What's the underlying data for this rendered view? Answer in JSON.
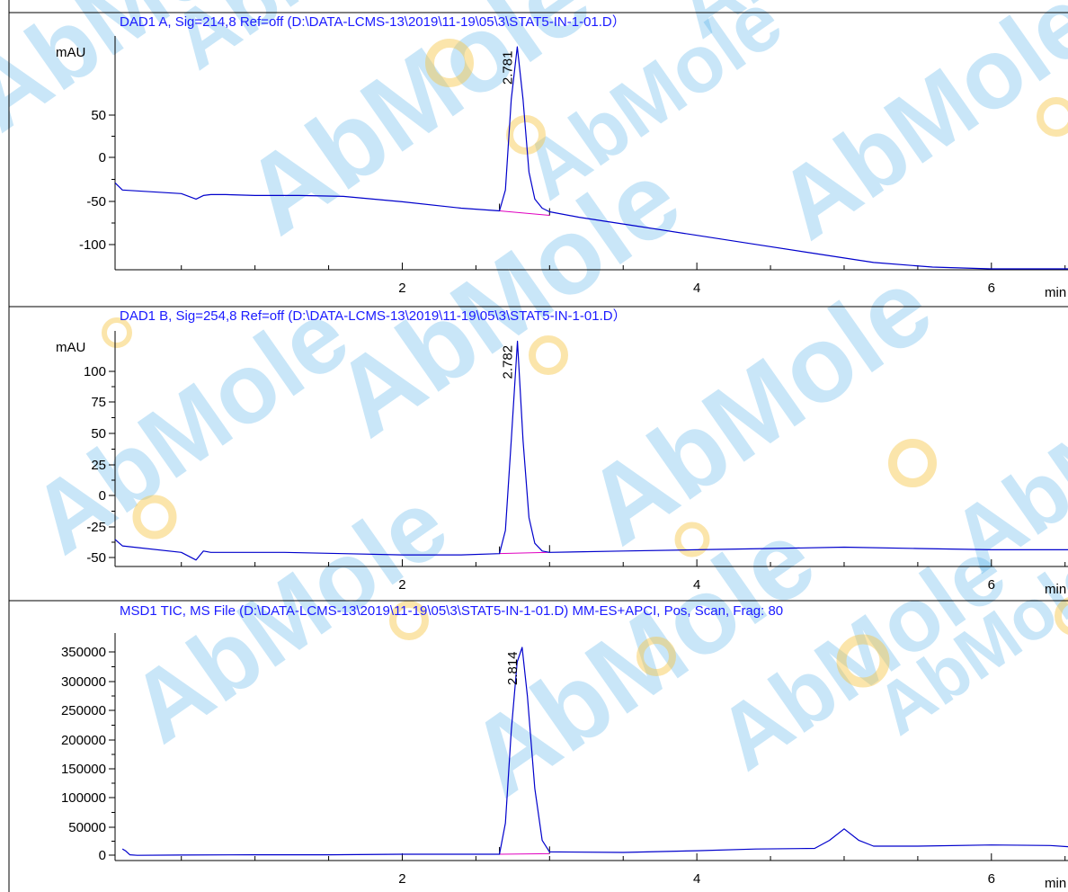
{
  "watermark": {
    "text": "AbMole",
    "blue": "#3fa9e8",
    "orange": "#f6c545"
  },
  "colors": {
    "trace": "#0000cc",
    "baseline": "#e000c0",
    "title": "#1a1aff"
  },
  "chart_data": [
    {
      "type": "line",
      "title": "DAD1 A, Sig=214,8 Ref=off (D:\\DATA-LCMS-13\\2019\\11-19\\05\\3\\STAT5-IN-1-01.D）",
      "ylabel": "mAU",
      "xlabel": "min",
      "xlim": [
        0.05,
        6.52
      ],
      "ylim": [
        -128,
        130
      ],
      "x_ticks": [
        "2",
        "4",
        "6"
      ],
      "y_ticks": [
        "50",
        "0",
        "-50",
        "-100"
      ],
      "peak": {
        "label": "2.781",
        "x": 2.781
      },
      "series": [
        {
          "x": [
            0.05,
            0.1,
            0.5,
            0.6,
            0.65,
            0.7,
            0.8,
            1.0,
            1.3,
            1.6,
            2.0,
            2.4,
            2.66,
            2.7,
            2.74,
            2.781,
            2.82,
            2.86,
            2.9,
            2.95,
            3.0,
            3.2,
            3.6,
            4.0,
            4.4,
            4.8,
            5.2,
            5.6,
            6.0,
            6.52
          ],
          "y": [
            -32,
            -40,
            -44,
            -50,
            -46,
            -45,
            -45,
            -46,
            -46,
            -47,
            -53,
            -60,
            -63,
            -40,
            60,
            118,
            60,
            -20,
            -50,
            -60,
            -64,
            -70,
            -80,
            -90,
            -100,
            -110,
            -120,
            -125,
            -127,
            -127
          ]
        }
      ],
      "baseline": {
        "x": [
          2.66,
          3.0
        ],
        "y": [
          -63,
          -68
        ]
      }
    },
    {
      "type": "line",
      "title": "DAD1 B, Sig=254,8 Ref=off (D:\\DATA-LCMS-13\\2019\\11-19\\05\\3\\STAT5-IN-1-01.D）",
      "ylabel": "mAU",
      "xlabel": "min",
      "xlim": [
        0.05,
        6.52
      ],
      "ylim": [
        -58,
        125
      ],
      "x_ticks": [
        "2",
        "4",
        "6"
      ],
      "y_ticks": [
        "100",
        "75",
        "50",
        "25",
        "0",
        "-25",
        "-50"
      ],
      "peak": {
        "label": "2.782",
        "x": 2.782
      },
      "series": [
        {
          "x": [
            0.05,
            0.1,
            0.5,
            0.6,
            0.65,
            0.7,
            0.8,
            1.2,
            1.6,
            2.0,
            2.4,
            2.66,
            2.7,
            2.74,
            2.782,
            2.82,
            2.86,
            2.9,
            2.95,
            3.0,
            3.5,
            4.0,
            4.5,
            5.0,
            5.5,
            6.0,
            6.52
          ],
          "y": [
            -37,
            -42,
            -47,
            -53,
            -46,
            -47,
            -47,
            -47,
            -48,
            -49,
            -49,
            -48,
            -30,
            40,
            117,
            40,
            -20,
            -40,
            -46,
            -47,
            -46,
            -45,
            -44,
            -43,
            -44,
            -45,
            -45
          ]
        }
      ],
      "baseline": {
        "x": [
          2.66,
          3.0
        ],
        "y": [
          -48,
          -47
        ]
      }
    },
    {
      "type": "line",
      "title": "MSD1 TIC, MS File (D:\\DATA-LCMS-13\\2019\\11-19\\05\\3\\STAT5-IN-1-01.D)  MM-ES+APCI, Pos, Scan, Frag: 80",
      "ylabel": "",
      "xlabel": "min",
      "xlim": [
        0.05,
        6.52
      ],
      "ylim": [
        -5000,
        390000
      ],
      "x_ticks": [
        "2",
        "4",
        "6"
      ],
      "y_ticks": [
        "350000",
        "300000",
        "250000",
        "200000",
        "150000",
        "100000",
        "50000",
        "0"
      ],
      "peak": {
        "label": "2.814",
        "x": 2.814
      },
      "series": [
        {
          "x": [
            0.1,
            0.12,
            0.15,
            0.2,
            0.5,
            1.0,
            1.5,
            2.0,
            2.4,
            2.66,
            2.7,
            2.74,
            2.78,
            2.814,
            2.85,
            2.9,
            2.95,
            3.0,
            3.5,
            4.0,
            4.4,
            4.8,
            4.9,
            5.0,
            5.1,
            5.2,
            5.5,
            6.0,
            6.4,
            6.52
          ],
          "y": [
            15000,
            12000,
            5000,
            4000,
            4500,
            5000,
            5000,
            6000,
            6000,
            6000,
            60000,
            220000,
            340000,
            365000,
            280000,
            120000,
            30000,
            10000,
            9000,
            12000,
            15000,
            16000,
            30000,
            50000,
            30000,
            20000,
            20000,
            22000,
            21000,
            19000
          ]
        }
      ],
      "baseline": {
        "x": [
          2.66,
          3.0
        ],
        "y": [
          6000,
          7000
        ]
      }
    }
  ]
}
